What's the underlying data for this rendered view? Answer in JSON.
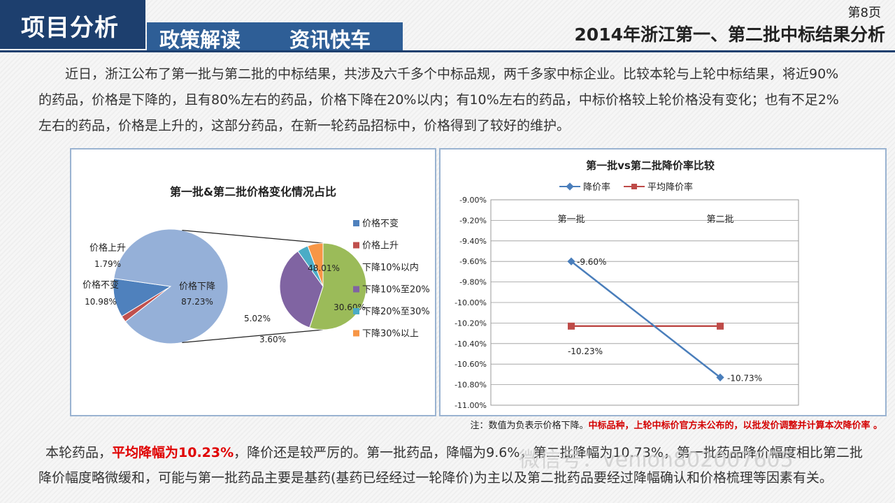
{
  "header": {
    "section_title": "项目分析",
    "tabs": [
      "政策解读",
      "资讯快车"
    ],
    "page_number": "第8页",
    "page_title": "2014年浙江第一、第二批中标结果分析"
  },
  "intro_text": "近日，浙江公布了第一批与第二批的中标结果，共涉及六千多个中标品规，两千多家中标企业。比较本轮与上轮中标结果，将近90%的药品，价格是下降的，且有80%左右的药品，价格下降在20%以内；有10%左右的药品，中标价格较上轮价格没有变化；也有不足2%左右的药品，价格是上升的，这部分药品，在新一轮药品招标中，价格得到了较好的维护。",
  "note": {
    "prefix": "注：数值为负表示价格下降。",
    "highlight": "中标品种，上轮中标价官方未公布的，以批发价调整并计算本次降价率 。"
  },
  "outro": {
    "part1": "本轮药品，",
    "highlight": "平均降幅为10.23%",
    "part2": "，降价还是较严厉的。第一批药品，降幅为9.6%，第二批降幅为10.73%，第一批药品降价幅度相比第二批降价幅度略微缓和，可能与第一批药品主要是基药(基药已经经过一轮降价)为主以及第二批药品要经过降幅确认和价格梳理等因素有关。"
  },
  "watermark": "微信号：venion802007605",
  "colors": {
    "header_dark": "#1d3f6e",
    "header_mid": "#2e5e96",
    "pie_blue": "#4f81bd",
    "pie_red": "#c0504d",
    "pie_green": "#9bbb59",
    "pie_purple": "#8064a2",
    "pie_teal": "#4bacc6",
    "pie_orange": "#f79646",
    "pie_main": "#95b0d8",
    "line_blue": "#4a7ebb",
    "line_red": "#be4b48"
  },
  "chart_data": [
    {
      "type": "pie",
      "title": "第一批&第二批价格变化情况占比",
      "main_slices": [
        {
          "label": "价格下降",
          "value": 87.23,
          "display": "87.23%"
        },
        {
          "label": "价格不变",
          "value": 10.98,
          "display": "10.98%"
        },
        {
          "label": "价格上升",
          "value": 1.79,
          "display": "1.79%"
        }
      ],
      "breakdown_slices": [
        {
          "label": "下降10%以内",
          "value": 48.01,
          "display": "48.01%"
        },
        {
          "label": "下降10%至20%",
          "value": 30.6,
          "display": "30.60%"
        },
        {
          "label": "下降20%至30%",
          "value": 3.6,
          "display": "3.60%"
        },
        {
          "label": "下降30%以上",
          "value": 5.02,
          "display": "5.02%"
        }
      ],
      "legend": [
        "价格不变",
        "价格上升",
        "下降10%以内",
        "下降10%至20%",
        "下降20%至30%",
        "下降30%以上"
      ],
      "legend_position": "right"
    },
    {
      "type": "line",
      "title": "第一批vs第二批降价率比较",
      "categories": [
        "第一批",
        "第二批"
      ],
      "series": [
        {
          "name": "降价率",
          "values": [
            -9.6,
            -10.73
          ],
          "labels": [
            "-9.60%",
            "-10.73%"
          ]
        },
        {
          "name": "平均降价率",
          "values": [
            -10.23,
            -10.23
          ],
          "labels": [
            "-10.23%"
          ]
        }
      ],
      "ylim": [
        -11.0,
        -9.0
      ],
      "y_ticks": [
        "-9.00%",
        "-9.20%",
        "-9.40%",
        "-9.60%",
        "-9.80%",
        "-10.00%",
        "-10.20%",
        "-10.40%",
        "-10.60%",
        "-10.80%",
        "-11.00%"
      ],
      "legend_position": "top",
      "grid": true
    }
  ]
}
